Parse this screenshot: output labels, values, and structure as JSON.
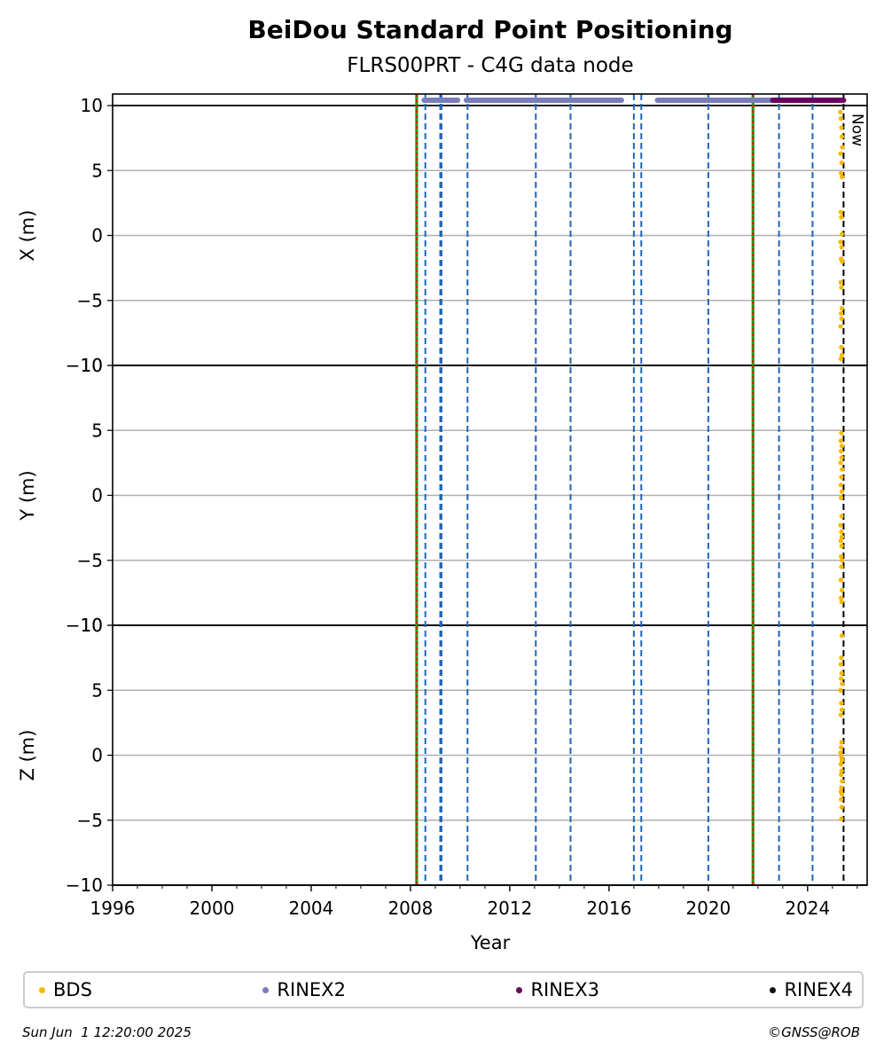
{
  "chart_data": {
    "type": "scatter",
    "title": "BeiDou Standard Point Positioning",
    "subtitle": "FLRS00PRT - C4G data node",
    "xlabel": "Year",
    "xlim": [
      1996,
      2026.4
    ],
    "xticks": [
      1996,
      2000,
      2004,
      2008,
      2012,
      2016,
      2020,
      2024
    ],
    "xtick_labels": [
      "1996",
      "2000",
      "2004",
      "2008",
      "2012",
      "2016",
      "2020",
      "2024"
    ],
    "grid": "horizontal",
    "legend_position": "bottom",
    "panels": [
      {
        "ylabel": "X (m)",
        "ylim": [
          -10,
          10
        ],
        "yticks": [
          10,
          5,
          0,
          -5,
          -10
        ],
        "ytick_labels": [
          "10",
          "5",
          "0",
          "−5",
          "−10"
        ],
        "series": [
          {
            "name": "BDS",
            "color": "#f5b800",
            "x": [
              2025.32,
              2025.34,
              2025.36,
              2025.38,
              2025.4,
              2025.33,
              2025.37,
              2025.35,
              2025.39,
              2025.34,
              2025.36,
              2025.38,
              2025.33,
              2025.37,
              2025.35,
              2025.39,
              2025.34,
              2025.36,
              2025.38,
              2025.35,
              2025.37,
              2025.33,
              2025.36,
              2025.38,
              2025.34
            ],
            "y": [
              9.5,
              9.0,
              8.3,
              7.6,
              6.8,
              6.3,
              5.6,
              4.8,
              4.5,
              1.8,
              1.4,
              0.1,
              -0.5,
              -0.9,
              -1.8,
              -2.0,
              -3.6,
              -4.0,
              -5.6,
              -6.0,
              -6.4,
              -7.0,
              -8.6,
              -9.2,
              -9.5
            ]
          }
        ]
      },
      {
        "ylabel": "Y (m)",
        "ylim": [
          -10,
          10
        ],
        "yticks": [
          10,
          5,
          0,
          -5,
          -10
        ],
        "ytick_labels": [
          "10",
          "5",
          "0",
          "−5",
          "−10"
        ],
        "series": [
          {
            "name": "BDS",
            "color": "#f5b800",
            "x": [
              2025.36,
              2025.34,
              2025.38,
              2025.35,
              2025.37,
              2025.33,
              2025.39,
              2025.36,
              2025.34,
              2025.38,
              2025.35,
              2025.37,
              2025.33,
              2025.36,
              2025.38,
              2025.34,
              2025.37,
              2025.35,
              2025.39,
              2025.36,
              2025.34,
              2025.38,
              2025.35,
              2025.37
            ],
            "y": [
              4.8,
              4.2,
              3.8,
              3.4,
              2.9,
              2.5,
              2.0,
              1.4,
              0.8,
              0.3,
              -0.2,
              -1.6,
              -2.3,
              -2.8,
              -3.2,
              -3.5,
              -3.9,
              -4.7,
              -5.0,
              -5.5,
              -6.5,
              -7.3,
              -7.9,
              -8.2
            ]
          }
        ]
      },
      {
        "ylabel": "Z (m)",
        "ylim": [
          -10,
          10
        ],
        "yticks": [
          10,
          5,
          0,
          -5,
          -10
        ],
        "ytick_labels": [
          "10",
          "5",
          "0",
          "−5",
          "−10"
        ],
        "series": [
          {
            "name": "BDS",
            "color": "#f5b800",
            "x": [
              2025.38,
              2025.36,
              2025.34,
              2025.37,
              2025.35,
              2025.39,
              2025.33,
              2025.36,
              2025.38,
              2025.34,
              2025.37,
              2025.35,
              2025.33,
              2025.36,
              2025.38,
              2025.34,
              2025.37,
              2025.35,
              2025.39,
              2025.36,
              2025.34,
              2025.38,
              2025.35,
              2025.37,
              2025.36,
              2025.38
            ],
            "y": [
              9.2,
              7.5,
              7.0,
              6.3,
              5.9,
              5.5,
              5.0,
              4.0,
              3.5,
              3.1,
              1.0,
              0.6,
              0.2,
              -0.1,
              -0.4,
              -0.7,
              -1.2,
              -1.5,
              -2.0,
              -2.5,
              -2.8,
              -3.0,
              -3.4,
              -4.0,
              -4.9,
              -0.3
            ]
          }
        ]
      }
    ],
    "availability_bars": [
      {
        "name": "RINEX2",
        "color": "#7b7db8",
        "segments": [
          [
            2008.55,
            2009.9
          ],
          [
            2010.25,
            2016.5
          ],
          [
            2017.95,
            2022.9
          ]
        ]
      },
      {
        "name": "RINEX3",
        "color": "#6b005e",
        "segments": [
          [
            2022.6,
            2025.45
          ]
        ]
      }
    ],
    "event_lines": {
      "blue_dashed": [
        2008.6,
        2009.2,
        2009.25,
        2010.3,
        2013.05,
        2014.45,
        2017.0,
        2017.3,
        2020.0,
        2022.85,
        2024.2
      ],
      "red_green": [
        2008.25,
        2021.8
      ],
      "now": 2025.45,
      "now_label": "Now"
    },
    "legend": [
      {
        "name": "BDS",
        "color": "#f5b800"
      },
      {
        "name": "RINEX2",
        "color": "#7b7db8"
      },
      {
        "name": "RINEX3",
        "color": "#6b005e"
      },
      {
        "name": "RINEX4",
        "color": "#1a0a18"
      }
    ]
  },
  "footer": {
    "timestamp": "Sun Jun  1 12:20:00 2025",
    "copyright": "©GNSS@ROB"
  }
}
